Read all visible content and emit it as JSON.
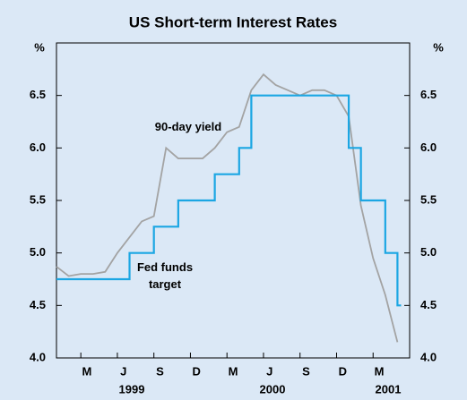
{
  "chart_data": {
    "type": "line",
    "title": "US Short-term Interest Rates",
    "y_unit": "%",
    "xlim": [
      "1999-01",
      "2001-06"
    ],
    "xticks": [
      {
        "value": "1999-03",
        "label": "M"
      },
      {
        "value": "1999-06",
        "label": "J"
      },
      {
        "value": "1999-09",
        "label": "S"
      },
      {
        "value": "1999-12",
        "label": "D"
      },
      {
        "value": "2000-03",
        "label": "M"
      },
      {
        "value": "2000-06",
        "label": "J"
      },
      {
        "value": "2000-09",
        "label": "S"
      },
      {
        "value": "2000-12",
        "label": "D"
      },
      {
        "value": "2001-03",
        "label": "M"
      }
    ],
    "year_labels": [
      "1999",
      "2000",
      "2001"
    ],
    "ylim": [
      4.0,
      7.0
    ],
    "yticks": [
      {
        "value": 4.0,
        "label": "4.0"
      },
      4.5,
      {
        "value": 5.0,
        "label": "5.0"
      },
      5.5,
      {
        "value": 6.0,
        "label": "6.0"
      },
      6.5
    ],
    "grid": false,
    "series": [
      {
        "name": "90-day yield",
        "color": "#a3a3a3",
        "step": false,
        "x": [
          "1999-01",
          "1999-02",
          "1999-03",
          "1999-04",
          "1999-05",
          "1999-06",
          "1999-07",
          "1999-08",
          "1999-09",
          "1999-10",
          "1999-11",
          "1999-12",
          "2000-01",
          "2000-02",
          "2000-03",
          "2000-04",
          "2000-05",
          "2000-06",
          "2000-07",
          "2000-08",
          "2000-09",
          "2000-10",
          "2000-11",
          "2000-12",
          "2001-01",
          "2001-02",
          "2001-03",
          "2001-04",
          "2001-05"
        ],
        "values": [
          4.87,
          4.78,
          4.8,
          4.8,
          4.82,
          5.0,
          5.15,
          5.3,
          5.35,
          6.0,
          5.9,
          5.9,
          5.9,
          6.0,
          6.15,
          6.2,
          6.55,
          6.7,
          6.6,
          6.55,
          6.5,
          6.55,
          6.55,
          6.5,
          6.3,
          5.45,
          4.95,
          4.6,
          4.15
        ]
      },
      {
        "name": "Fed funds target",
        "color": "#1ba6e3",
        "step": true,
        "x": [
          "1999-01",
          "1999-07",
          "1999-09",
          "1999-11",
          "2000-02",
          "2000-04",
          "2000-05",
          "2001-01",
          "2001-02",
          "2001-04",
          "2001-05"
        ],
        "values": [
          4.75,
          5.0,
          5.25,
          5.5,
          5.75,
          6.0,
          6.5,
          6.0,
          5.5,
          5.0,
          4.5
        ]
      }
    ]
  }
}
